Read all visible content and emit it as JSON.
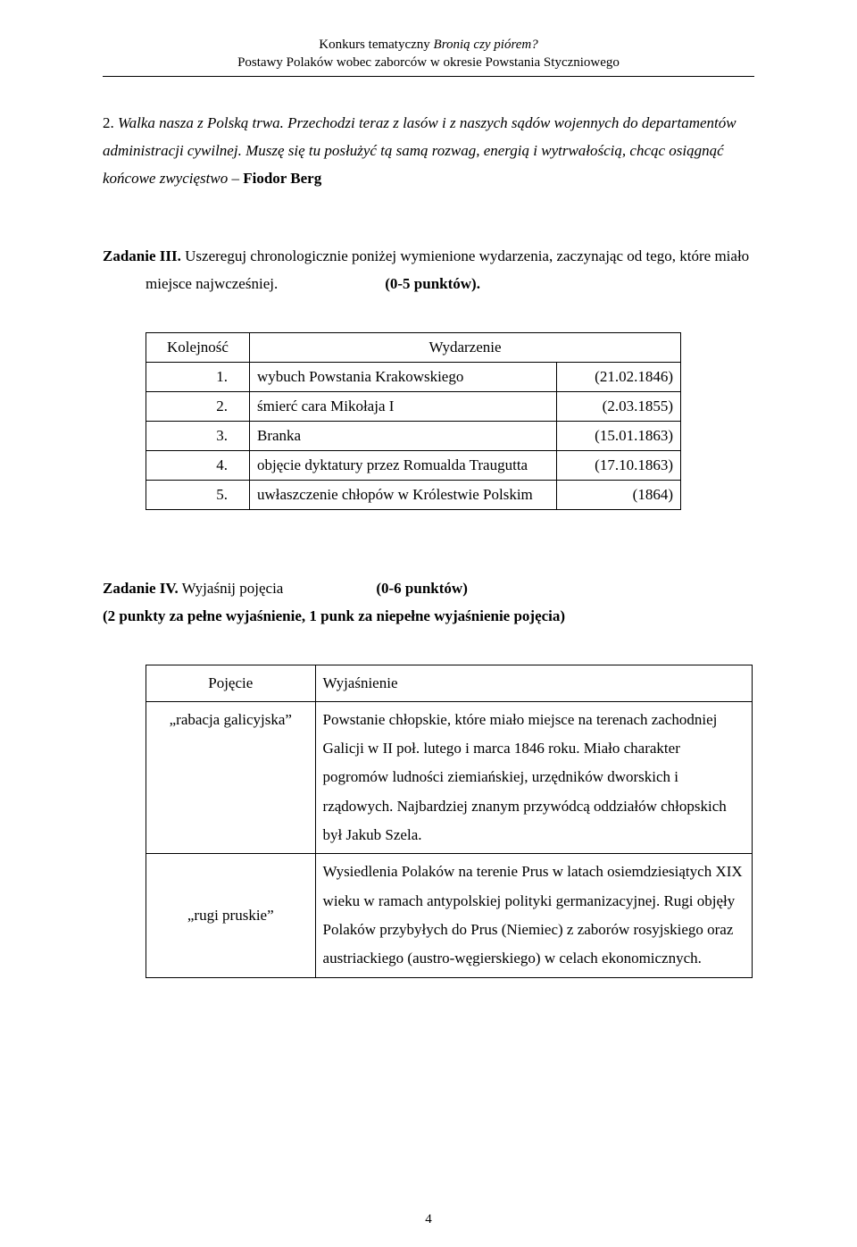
{
  "header": {
    "line1_prefix": "Konkurs tematyczny ",
    "line1_italic": "Bronią czy piórem?",
    "line2_italic": "Postawy Polaków wobec za",
    "line2_plain": "borców w okresie Powstania Styczniowego"
  },
  "paragraph2": {
    "num": "2. ",
    "text_italic": "Walka nasza z Polską trwa. Przechodzi teraz z lasów i z naszych sądów wojennych do departamentów administracji cywilnej. Muszę się tu posłużyć tą samą rozwag, energią i wytrwałością, chcąc osiągnąć końcowe zwycięstwo",
    "dash": " – ",
    "author": "Fiodor Berg"
  },
  "task3": {
    "title": "Zadanie III.",
    "instr_part1": " Uszereguj chronologicznie poniżej wymienione wydarzenia, zaczynając od tego, które miało",
    "instr_line2_indent": "miejsce najwcześniej.",
    "points": "(0-5 punktów)."
  },
  "table1": {
    "headers": {
      "col1": "Kolejność",
      "col2": "Wydarzenie"
    },
    "rows": [
      {
        "n": "1.",
        "event": "wybuch Powstania Krakowskiego",
        "date": "(21.02.1846)"
      },
      {
        "n": "2.",
        "event": "śmierć cara Mikołaja I",
        "date": "(2.03.1855)"
      },
      {
        "n": "3.",
        "event": "Branka",
        "date": "(15.01.1863)"
      },
      {
        "n": "4.",
        "event": "objęcie dyktatury przez Romualda Traugutta",
        "date": "(17.10.1863)"
      },
      {
        "n": "5.",
        "event": "uwłaszczenie chłopów w Królestwie Polskim",
        "date": "(1864)"
      }
    ]
  },
  "task4": {
    "title": "Zadanie IV.",
    "label": " Wyjaśnij pojęcia",
    "points": "(0-6 punktów)",
    "sub": "(2 punkty za pełne wyjaśnienie, 1 punk za niepełne wyjaśnienie pojęcia)"
  },
  "table2": {
    "headers": {
      "col1": "Pojęcie",
      "col2": "Wyjaśnienie"
    },
    "rows": [
      {
        "term": "„rabacja galicyjska”",
        "desc": "Powstanie chłopskie, które miało miejsce na terenach zachodniej Galicji w II poł. lutego i marca 1846 roku. Miało charakter pogromów ludności ziemiańskiej, urzędników dworskich i rządowych. Najbardziej znanym przywódcą oddziałów chłopskich był Jakub Szela."
      },
      {
        "term": "„rugi pruskie”",
        "desc": "Wysiedlenia Polaków na terenie Prus w latach osiemdziesiątych XIX wieku w ramach antypolskiej polityki germanizacyjnej. Rugi objęły Polaków przybyłych do Prus (Niemiec) z zaborów rosyjskiego oraz austriackiego (austro-węgierskiego) w celach ekonomicznych."
      }
    ]
  },
  "page_number": "4"
}
